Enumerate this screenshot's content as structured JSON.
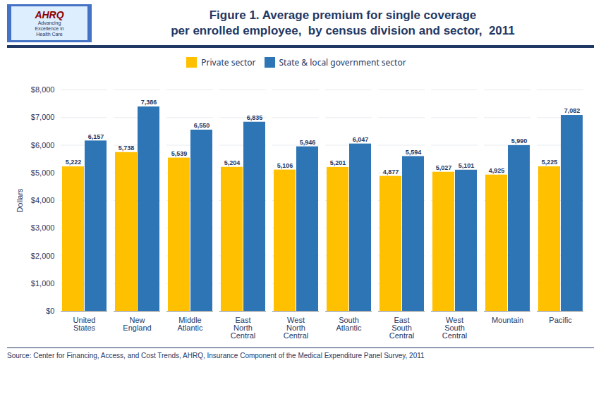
{
  "chart_data": {
    "type": "bar",
    "title": "Figure 1. Average premium for single coverage",
    "subtitle": "per enrolled employee,  by census division and sector,  2011",
    "caption": "Source: Center for Financing, Access, and Cost Trends, AHRQ, Insurance Component of the Medical Expenditure Panel Survey,  2011",
    "annotations": [
      "AHRQ",
      "Advancing\nExcellence in\nHealth Care"
    ],
    "categories": [
      "United\nStates",
      "New\nEngland",
      "Middle\nAtlantic",
      "East\nNorth\nCentral",
      "West\nNorth\nCentral",
      "South\nAtlantic",
      "East\nSouth\nCentral",
      "West\nSouth\nCentral",
      "Mountain",
      "Pacific"
    ],
    "series": [
      {
        "name": "Private sector",
        "color": "#FFC000",
        "values": [
          5222,
          5738,
          5539,
          5204,
          5106,
          5201,
          4877,
          5027,
          4925,
          5225
        ],
        "value_labels": [
          "5,222",
          "5,738",
          "5,539",
          "5,204",
          "5,106",
          "5,201",
          "4,877",
          "5,027",
          "4,925",
          "5,225"
        ]
      },
      {
        "name": "State & local government sector",
        "color": "#2E75B6",
        "values": [
          6157,
          7386,
          6550,
          6835,
          5946,
          6047,
          5594,
          5101,
          5990,
          7082
        ],
        "value_labels": [
          "6,157",
          "7,386",
          "6,550",
          "6,835",
          "5,946",
          "6,047",
          "5,594",
          "5,101",
          "5,990",
          "7,082"
        ]
      }
    ],
    "ylabel": "Dollars",
    "ylim": [
      0,
      8000
    ],
    "yticks": [
      {
        "value": 0,
        "label": "$0"
      },
      {
        "value": 1000,
        "label": "$1,000"
      },
      {
        "value": 2000,
        "label": "$2,000"
      },
      {
        "value": 3000,
        "label": "$3,000"
      },
      {
        "value": 4000,
        "label": "$4,000"
      },
      {
        "value": 5000,
        "label": "$5,000"
      },
      {
        "value": 6000,
        "label": "$6,000"
      },
      {
        "value": 7000,
        "label": "$7,000"
      },
      {
        "value": 8000,
        "label": "$8,000"
      }
    ],
    "grid": true,
    "legend": "top",
    "data_labels": true
  }
}
